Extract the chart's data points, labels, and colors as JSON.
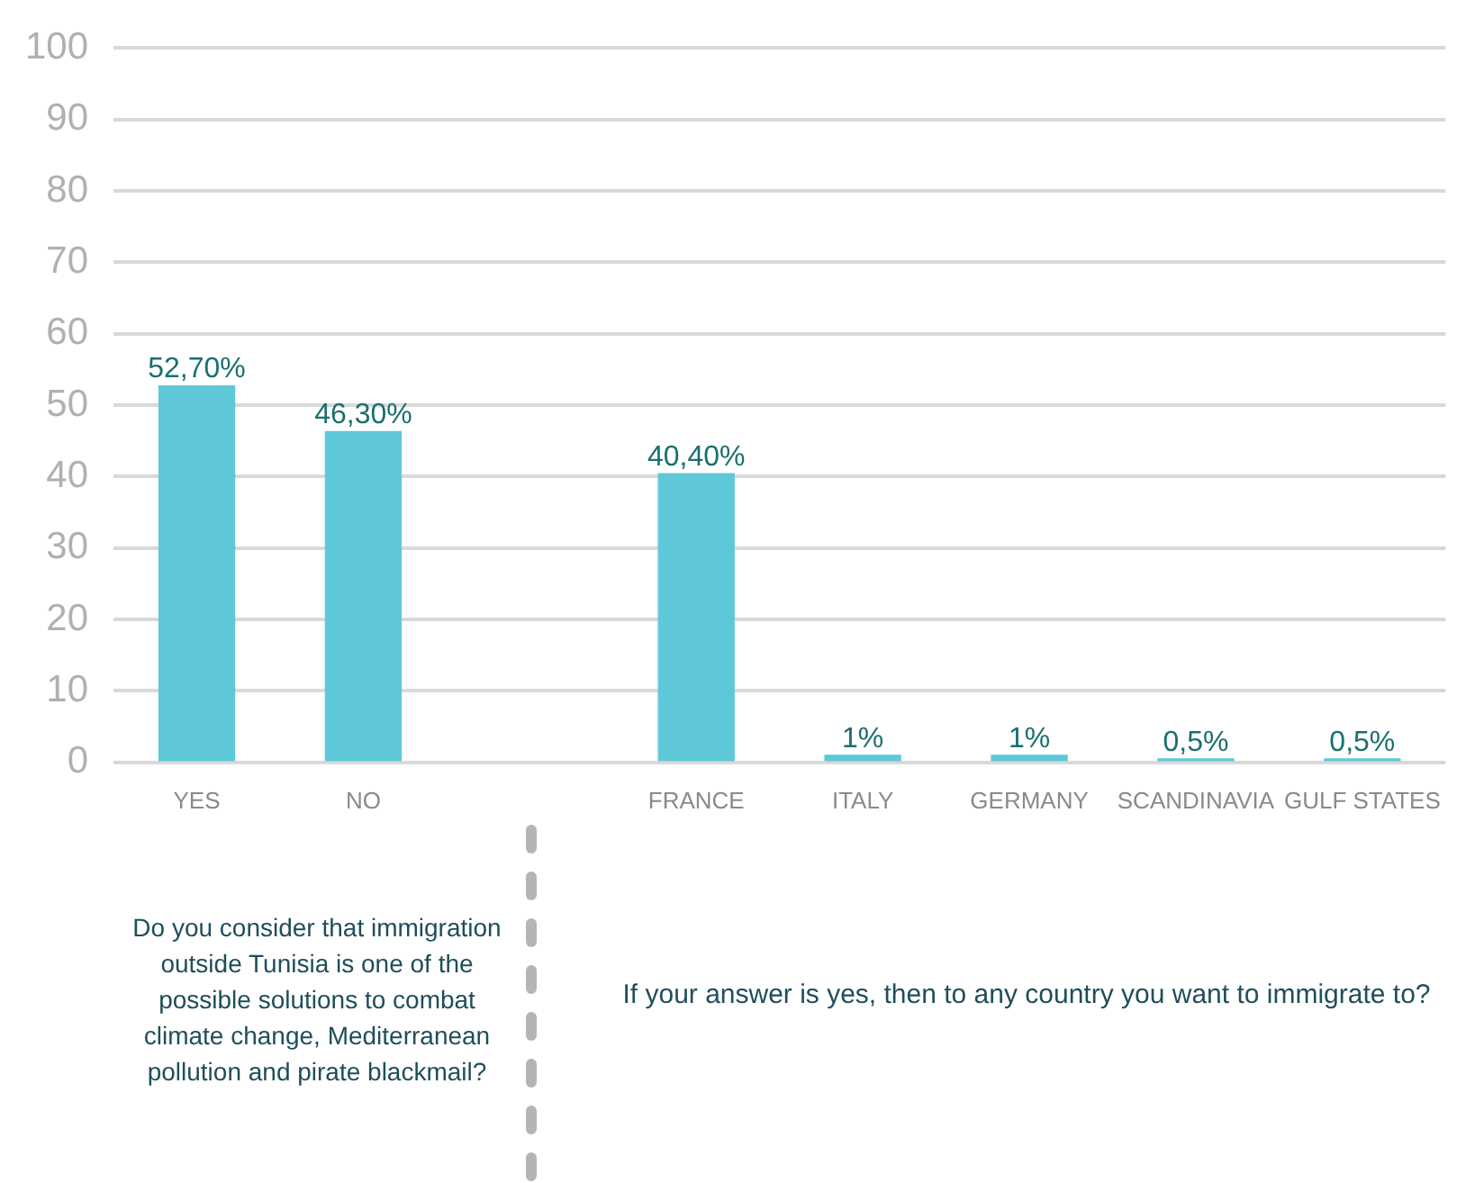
{
  "chart_data": {
    "type": "bar",
    "categories": [
      "YES",
      "NO",
      null,
      "FRANCE",
      "ITALY",
      "GERMANY",
      "SCANDINAVIA",
      "GULF STATES"
    ],
    "values": [
      52.7,
      46.3,
      null,
      40.4,
      1,
      1,
      0.5,
      0.5
    ],
    "value_labels": [
      "52,70%",
      "46,30%",
      null,
      "40,40%",
      "1%",
      "1%",
      "0,5%",
      "0,5%"
    ],
    "color": "#5ec8d8",
    "ylim": [
      0,
      100
    ],
    "yticks": [
      0,
      10,
      20,
      30,
      40,
      50,
      60,
      70,
      80,
      90,
      100
    ],
    "grid": "y",
    "legend": false,
    "annotations": [
      "Do you consider that immigration outside Tunisia is one of the possible solutions to combat climate change, Mediterranean pollution and pirate blackmail?",
      "If your answer is yes, then to any country you want to immigrate to?"
    ]
  }
}
